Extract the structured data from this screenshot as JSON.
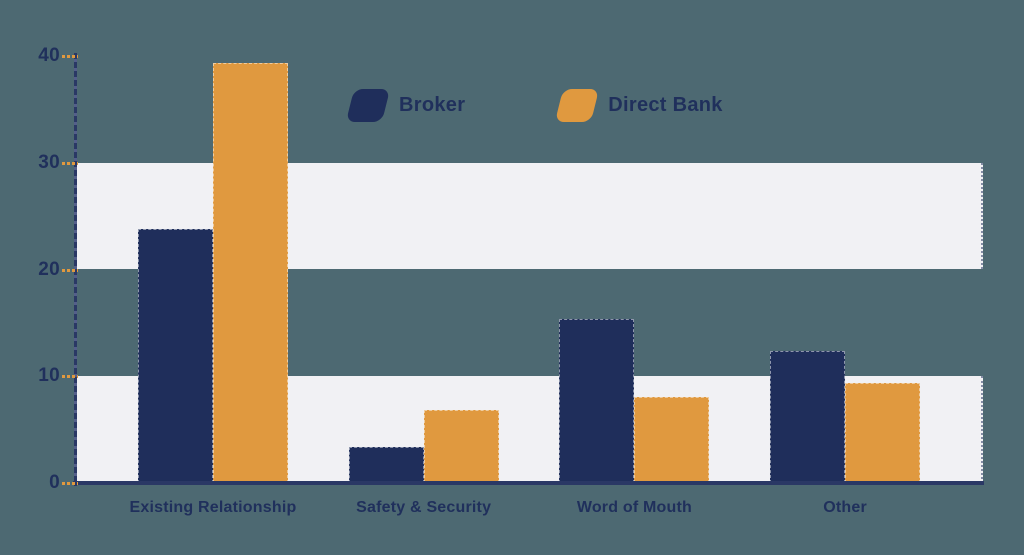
{
  "chart_data": {
    "type": "bar",
    "title": "",
    "xlabel": "",
    "ylabel": "",
    "categories": [
      "Existing Relationship",
      "Safety & Security",
      "Word of Mouth",
      "Other"
    ],
    "series": [
      {
        "name": "Broker",
        "color": "#1f2e5b",
        "values": [
          23.8,
          3.4,
          15.4,
          12.4
        ]
      },
      {
        "name": "Direct Bank",
        "color": "#e0993f",
        "values": [
          39.3,
          6.8,
          8.1,
          9.4
        ]
      }
    ],
    "ylim": [
      0,
      40
    ],
    "yticks": [
      0,
      10,
      20,
      30,
      40
    ],
    "grid": {
      "style": "horizontal-bands",
      "bands_y": [
        [
          20,
          30
        ],
        [
          0,
          10
        ]
      ],
      "band_color": "#f1f1f4"
    },
    "legend_position": "top-center"
  },
  "legend": {
    "items": [
      {
        "label": "Broker",
        "color": "#1f2e5b"
      },
      {
        "label": "Direct Bank",
        "color": "#e0993f"
      }
    ]
  },
  "colors": {
    "background": "#4d6972",
    "navy": "#1f2e5b",
    "orange": "#e0993f",
    "band": "#f1f1f4",
    "axis": "#2a3865",
    "text": "#20305c",
    "tick_dash": "#e0993f"
  }
}
